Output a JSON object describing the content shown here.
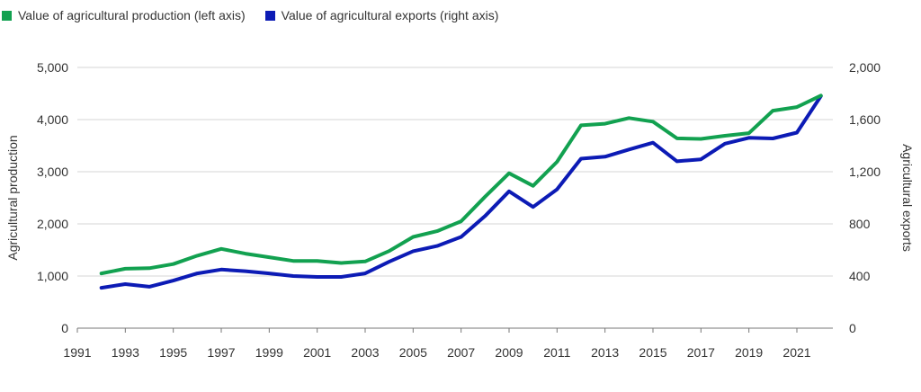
{
  "chart_data": {
    "type": "line",
    "title": "",
    "x": [
      1992,
      1993,
      1994,
      1995,
      1996,
      1997,
      1998,
      1999,
      2000,
      2001,
      2002,
      2003,
      2004,
      2005,
      2006,
      2007,
      2008,
      2009,
      2010,
      2011,
      2012,
      2013,
      2014,
      2015,
      2016,
      2017,
      2018,
      2019,
      2020,
      2021,
      2022
    ],
    "xticks": [
      1991,
      1993,
      1995,
      1997,
      1999,
      2001,
      2003,
      2005,
      2007,
      2009,
      2011,
      2013,
      2015,
      2017,
      2019,
      2021
    ],
    "xlim": [
      1991,
      2022.5
    ],
    "ylabel_left": "Agricultural production",
    "ylabel_right": "Agricultural exports",
    "ylim_left": [
      0,
      5000
    ],
    "ylim_right": [
      0,
      2000
    ],
    "yticks_left": [
      "0",
      "1,000",
      "2,000",
      "3,000",
      "4,000",
      "5,000"
    ],
    "yticks_right": [
      "0",
      "400",
      "800",
      "1,200",
      "1,600",
      "2,000"
    ],
    "grid": "horizontal",
    "legend_position": "top-left",
    "series": [
      {
        "name": "Value of agricultural production (left axis)",
        "axis": "left",
        "color": "#12a150",
        "values": [
          1050,
          1140,
          1150,
          1230,
          1390,
          1520,
          1430,
          1360,
          1290,
          1290,
          1250,
          1280,
          1480,
          1750,
          1860,
          2050,
          2520,
          2970,
          2730,
          3190,
          3890,
          3920,
          4030,
          3960,
          3640,
          3630,
          3690,
          3740,
          4170,
          4240,
          4460
        ]
      },
      {
        "name": "Value of agricultural exports (right axis)",
        "axis": "right",
        "color": "#0c1bb5",
        "values": [
          310,
          338,
          318,
          365,
          420,
          450,
          437,
          420,
          400,
          393,
          393,
          420,
          510,
          590,
          630,
          700,
          860,
          1050,
          930,
          1065,
          1300,
          1315,
          1370,
          1423,
          1280,
          1295,
          1415,
          1460,
          1455,
          1500,
          1780
        ]
      }
    ]
  }
}
